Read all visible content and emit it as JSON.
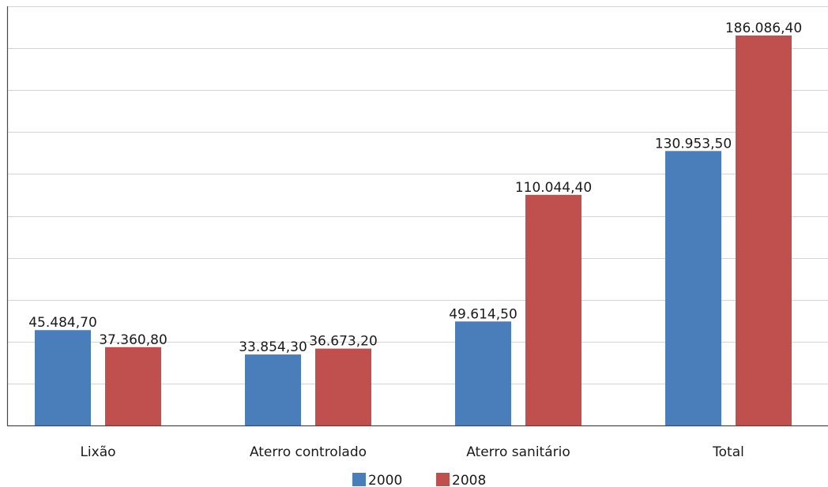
{
  "chart_data": {
    "type": "bar",
    "title": "",
    "xlabel": "",
    "ylabel": "",
    "categories": [
      "Lixão",
      "Aterro controlado",
      "Aterro sanitário",
      "Total"
    ],
    "series": [
      {
        "name": "2000",
        "color": "#4a7ebb",
        "values": [
          45484.7,
          33854.3,
          49614.5,
          130953.5
        ],
        "labels": [
          "45.484,70",
          "33.854,30",
          "49.614,50",
          "130.953,50"
        ]
      },
      {
        "name": "2008",
        "color": "#c0504d",
        "values": [
          37360.8,
          36673.2,
          110044.4,
          186086.4
        ],
        "labels": [
          "37.360,80",
          "36.673,20",
          "110.044,40",
          "186.086,40"
        ]
      }
    ],
    "ylim": [
      0,
      200000
    ],
    "y_gridlines": [
      0,
      20000,
      40000,
      60000,
      80000,
      100000,
      120000,
      140000,
      160000,
      180000,
      200000
    ],
    "grid": true,
    "legend_position": "bottom"
  }
}
